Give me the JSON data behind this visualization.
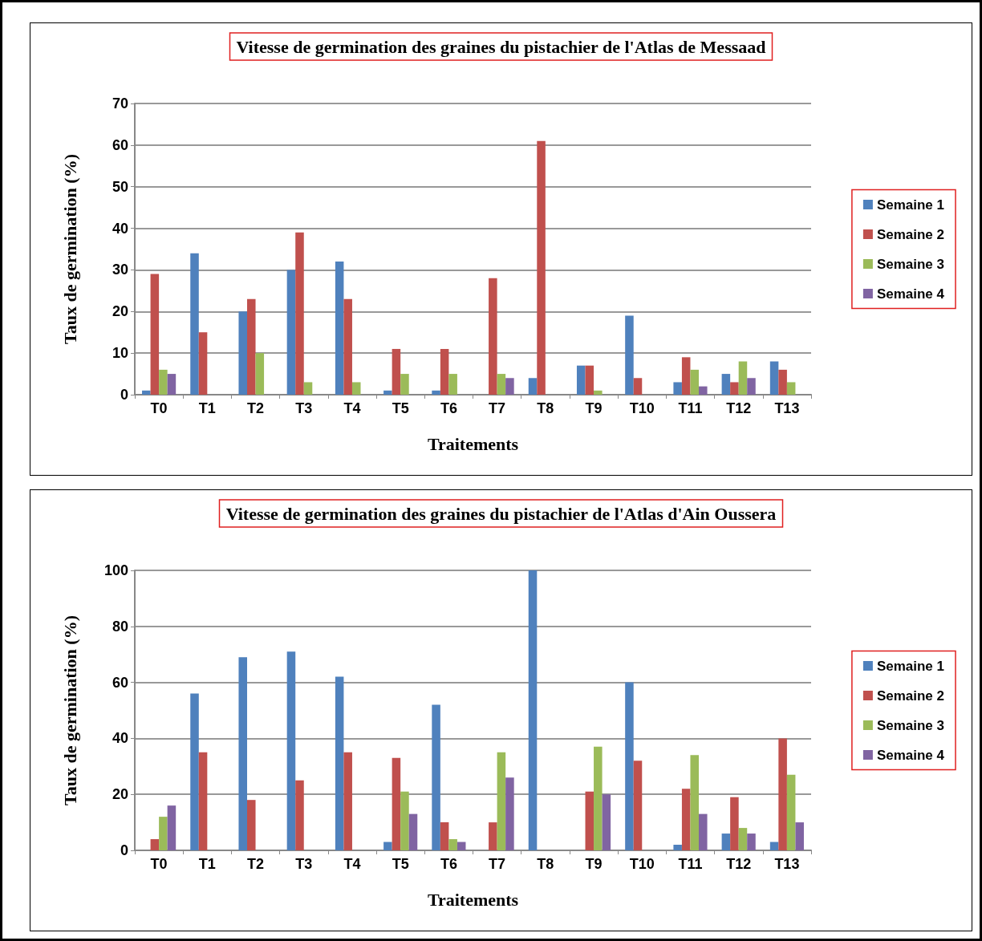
{
  "chart_data": [
    {
      "type": "bar",
      "title": "Vitesse de germination des graines du pistachier de l'Atlas de Messaad",
      "xlabel": "Traitements",
      "ylabel": "Taux de germination (%)",
      "categories": [
        "T0",
        "T1",
        "T2",
        "T3",
        "T4",
        "T5",
        "T6",
        "T7",
        "T8",
        "T9",
        "T10",
        "T11",
        "T12",
        "T13"
      ],
      "series": [
        {
          "name": "Semaine 1",
          "color": "#4f81bd",
          "values": [
            1,
            34,
            20,
            30,
            32,
            1,
            1,
            0,
            4,
            7,
            19,
            3,
            5,
            8
          ]
        },
        {
          "name": "Semaine 2",
          "color": "#c0504d",
          "values": [
            29,
            15,
            23,
            39,
            23,
            11,
            11,
            28,
            61,
            7,
            4,
            9,
            3,
            6
          ]
        },
        {
          "name": "Semaine 3",
          "color": "#9bbb59",
          "values": [
            6,
            0,
            10,
            3,
            3,
            5,
            5,
            5,
            0,
            1,
            0,
            6,
            8,
            3
          ]
        },
        {
          "name": "Semaine 4",
          "color": "#8064a2",
          "values": [
            5,
            0,
            0,
            0,
            0,
            0,
            0,
            4,
            0,
            0,
            0,
            2,
            4,
            0
          ]
        }
      ],
      "ylim": [
        0,
        70
      ],
      "yticks": [
        0,
        10,
        20,
        30,
        40,
        50,
        60,
        70
      ],
      "grid": "y",
      "legend": "right"
    },
    {
      "type": "bar",
      "title": "Vitesse de germination des graines du pistachier de l'Atlas d'Ain Oussera",
      "xlabel": "Traitements",
      "ylabel": "Taux de germination (%)",
      "categories": [
        "T0",
        "T1",
        "T2",
        "T3",
        "T4",
        "T5",
        "T6",
        "T7",
        "T8",
        "T9",
        "T10",
        "T11",
        "T12",
        "T13"
      ],
      "series": [
        {
          "name": "Semaine 1",
          "color": "#4f81bd",
          "values": [
            0,
            56,
            69,
            71,
            62,
            3,
            52,
            0,
            100,
            0,
            60,
            2,
            6,
            3
          ]
        },
        {
          "name": "Semaine 2",
          "color": "#c0504d",
          "values": [
            4,
            35,
            18,
            25,
            35,
            33,
            10,
            10,
            0,
            21,
            32,
            22,
            19,
            40
          ]
        },
        {
          "name": "Semaine 3",
          "color": "#9bbb59",
          "values": [
            12,
            0,
            0,
            0,
            0,
            21,
            4,
            35,
            0,
            37,
            0,
            34,
            8,
            27
          ]
        },
        {
          "name": "Semaine 4",
          "color": "#8064a2",
          "values": [
            16,
            0,
            0,
            0,
            0,
            13,
            3,
            26,
            0,
            20,
            0,
            13,
            6,
            10
          ]
        }
      ],
      "ylim": [
        0,
        100
      ],
      "yticks": [
        0,
        20,
        40,
        60,
        80,
        100
      ],
      "grid": "y",
      "legend": "right"
    }
  ]
}
